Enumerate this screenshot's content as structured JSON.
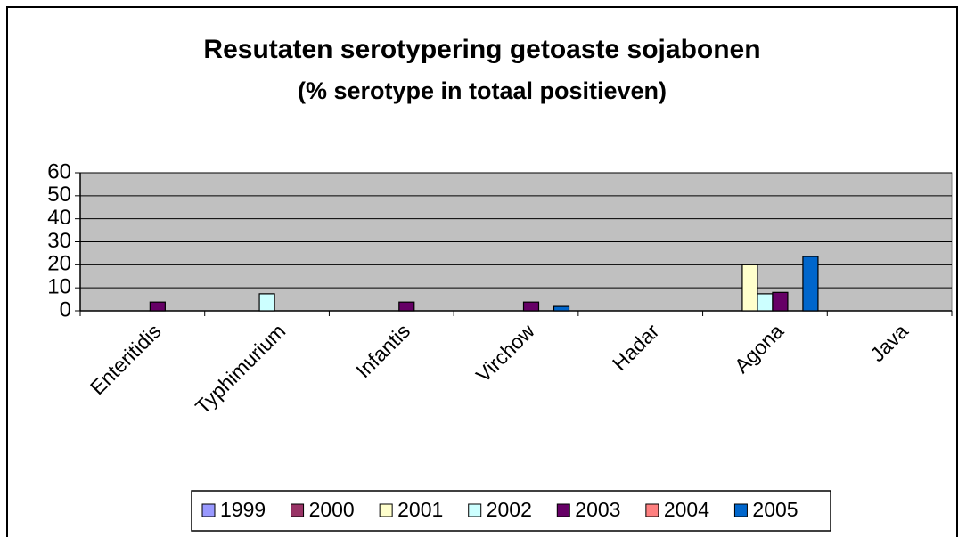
{
  "chart_data": {
    "type": "bar",
    "title": "Resutaten serotypering getoaste sojabonen",
    "subtitle": "(% serotype in totaal positieven)",
    "categories": [
      "Enteritidis",
      "Typhimurium",
      "Infantis",
      "Virchow",
      "Hadar",
      "Agona",
      "Java"
    ],
    "series": [
      {
        "name": "1999",
        "color": "#9999ff",
        "values": [
          0,
          0,
          0,
          0,
          0,
          0,
          0
        ]
      },
      {
        "name": "2000",
        "color": "#993366",
        "values": [
          0,
          0,
          0,
          0,
          0,
          0,
          0
        ]
      },
      {
        "name": "2001",
        "color": "#ffffcc",
        "values": [
          0,
          0,
          0,
          0,
          0,
          20,
          0
        ]
      },
      {
        "name": "2002",
        "color": "#ccffff",
        "values": [
          0,
          7.4,
          0,
          0,
          0,
          7.4,
          0
        ]
      },
      {
        "name": "2003",
        "color": "#660066",
        "values": [
          3.8,
          0,
          3.8,
          3.8,
          0,
          8,
          0
        ]
      },
      {
        "name": "2004",
        "color": "#ff8080",
        "values": [
          0,
          0,
          0,
          0,
          0,
          0,
          0
        ]
      },
      {
        "name": "2005",
        "color": "#0066cc",
        "values": [
          0,
          0,
          0,
          1.9,
          0,
          23.6,
          0
        ]
      }
    ],
    "ylim": [
      0,
      60
    ],
    "yticks": [
      0,
      10,
      20,
      30,
      40,
      50,
      60
    ],
    "grid": true,
    "legend": "bottom"
  }
}
